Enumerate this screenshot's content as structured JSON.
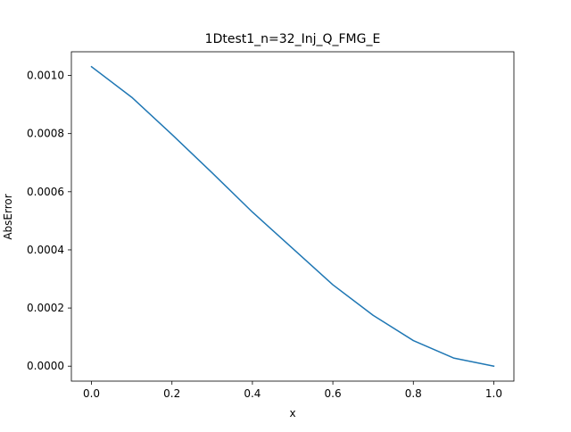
{
  "chart_data": {
    "type": "line",
    "title": "1Dtest1_n=32_Inj_Q_FMG_E",
    "xlabel": "x",
    "ylabel": "AbsError",
    "xlim": [
      -0.05,
      1.05
    ],
    "ylim": [
      -5.15e-05,
      0.0010815
    ],
    "x_ticks": [
      0.0,
      0.2,
      0.4,
      0.6,
      0.8,
      1.0
    ],
    "x_tick_labels": [
      "0.0",
      "0.2",
      "0.4",
      "0.6",
      "0.8",
      "1.0"
    ],
    "y_ticks": [
      0.0,
      0.0002,
      0.0004,
      0.0006,
      0.0008,
      0.001
    ],
    "y_tick_labels": [
      "0.0000",
      "0.0002",
      "0.0004",
      "0.0006",
      "0.0008",
      "0.0010"
    ],
    "grid": false,
    "legend": "none",
    "series": [
      {
        "color": "#1f77b4",
        "x": [
          0.0,
          0.1,
          0.2,
          0.3,
          0.4,
          0.5,
          0.6,
          0.7,
          0.8,
          0.9,
          1.0
        ],
        "y": [
          0.00103,
          0.000925,
          0.000797,
          0.000665,
          0.00053,
          0.000405,
          0.00028,
          0.000175,
          8.8e-05,
          2.8e-05,
          0.0
        ]
      }
    ]
  }
}
